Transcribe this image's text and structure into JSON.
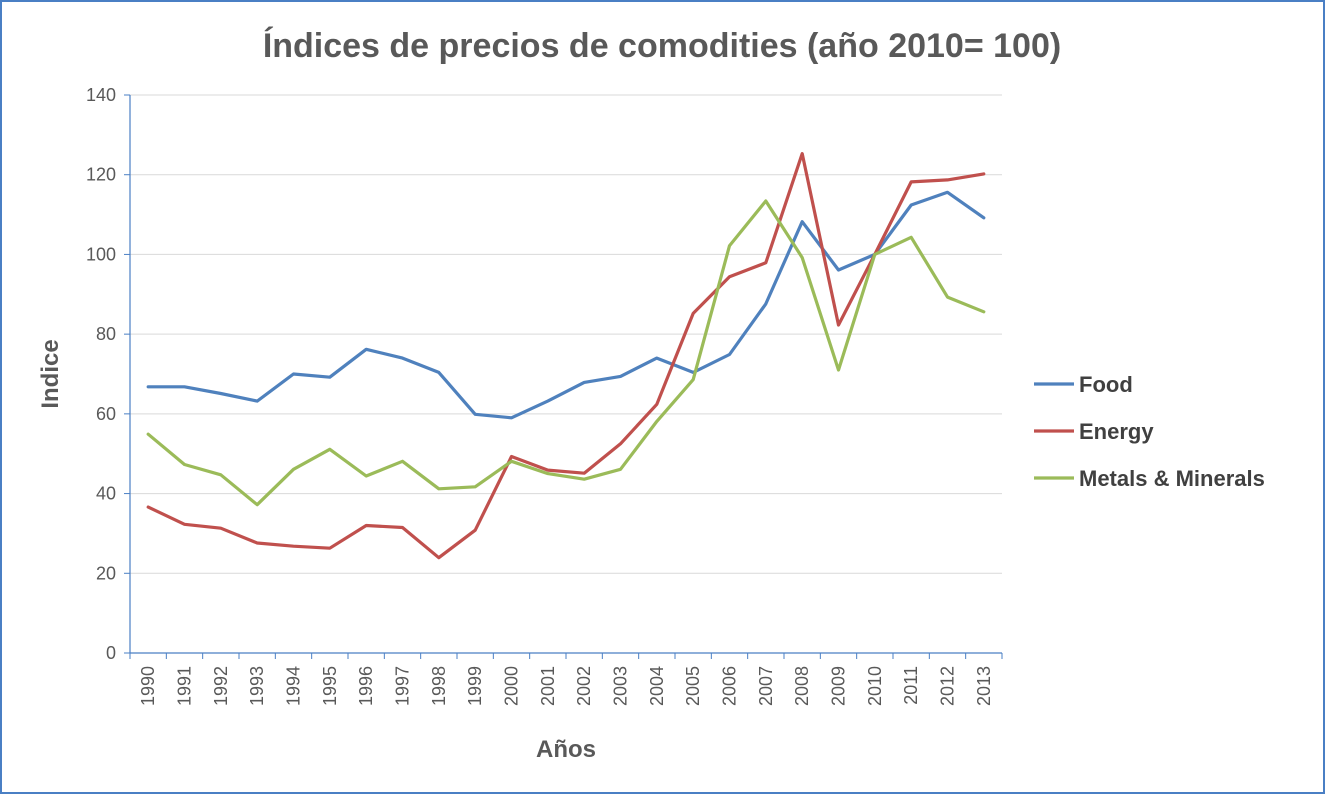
{
  "chart_data": {
    "type": "line",
    "title": "Índices de precios de comodities (año 2010= 100)",
    "xlabel": "Años",
    "ylabel": "Indice",
    "ylim": [
      0,
      140
    ],
    "yticks": [
      0,
      20,
      40,
      60,
      80,
      100,
      120,
      140
    ],
    "grid": true,
    "legend_position": "right",
    "categories": [
      "1990",
      "1991",
      "1992",
      "1993",
      "1994",
      "1995",
      "1996",
      "1997",
      "1998",
      "1999",
      "2000",
      "2001",
      "2002",
      "2003",
      "2004",
      "2005",
      "2006",
      "2007",
      "2008",
      "2009",
      "2010",
      "2011",
      "2012",
      "2013"
    ],
    "series": [
      {
        "name": "Food",
        "color": "#4f81bd",
        "values": [
          66.8,
          66.8,
          65.1,
          63.2,
          70.0,
          69.2,
          76.2,
          74.0,
          70.4,
          59.9,
          59.0,
          63.2,
          67.9,
          69.4,
          74.0,
          70.4,
          74.9,
          87.6,
          108.2,
          96.1,
          100.0,
          112.4,
          115.6,
          109.2
        ]
      },
      {
        "name": "Energy",
        "color": "#c0504d",
        "values": [
          36.6,
          32.3,
          31.3,
          27.6,
          26.8,
          26.3,
          32.0,
          31.5,
          23.9,
          30.8,
          49.3,
          45.9,
          45.1,
          52.5,
          62.4,
          85.2,
          94.4,
          97.9,
          125.3,
          82.3,
          100.0,
          118.2,
          118.7,
          120.2
        ]
      },
      {
        "name": "Metals & Minerals",
        "color": "#9bbb59",
        "values": [
          54.9,
          47.3,
          44.7,
          37.2,
          46.1,
          51.1,
          44.4,
          48.1,
          41.2,
          41.7,
          48.1,
          45.0,
          43.6,
          46.1,
          58.1,
          68.6,
          102.2,
          113.4,
          99.2,
          71.0,
          100.0,
          104.3,
          89.3,
          85.6
        ]
      }
    ]
  },
  "colors": {
    "border": "#4a7fc4",
    "grid": "#d9d9d9",
    "axis": "#4a7fc4",
    "text": "#595959"
  }
}
